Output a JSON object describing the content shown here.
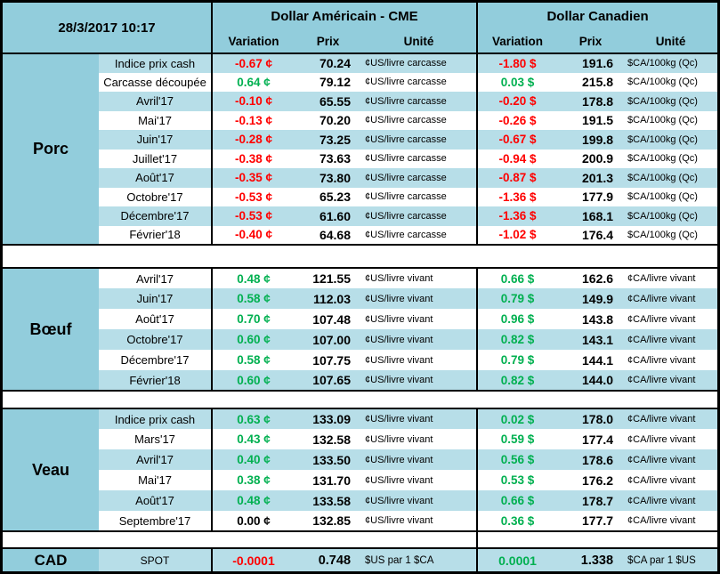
{
  "meta": {
    "timestamp": "28/3/2017 10:17"
  },
  "header": {
    "us_title": "Dollar Américain - CME",
    "ca_title": "Dollar Canadien",
    "col_variation": "Variation",
    "col_price": "Prix",
    "col_unit": "Unité"
  },
  "colors": {
    "negative_red": "#FF0000",
    "positive_green": "#00B050",
    "header_blue": "#92CDDC",
    "stripe_blue": "#B7DEE8",
    "grid_black": "#000000"
  },
  "sections": [
    {
      "id": "porc",
      "name": "Porc",
      "stripe_offset": 1,
      "rows": [
        {
          "label": "Indice prix cash",
          "us": {
            "variation": "-0.67 ¢",
            "price": "70.24",
            "unit": "¢US/livre carcasse"
          },
          "ca": {
            "variation": "-1.80 $",
            "price": "191.6",
            "unit": "$CA/100kg (Qc)"
          }
        },
        {
          "label": "Carcasse découpée",
          "us": {
            "variation": "0.64 ¢",
            "price": "79.12",
            "unit": "¢US/livre carcasse"
          },
          "ca": {
            "variation": "0.03 $",
            "price": "215.8",
            "unit": "$CA/100kg (Qc)"
          }
        },
        {
          "label": "Avril'17",
          "us": {
            "variation": "-0.10 ¢",
            "price": "65.55",
            "unit": "¢US/livre carcasse"
          },
          "ca": {
            "variation": "-0.20 $",
            "price": "178.8",
            "unit": "$CA/100kg (Qc)"
          }
        },
        {
          "label": "Mai'17",
          "us": {
            "variation": "-0.13 ¢",
            "price": "70.20",
            "unit": "¢US/livre carcasse"
          },
          "ca": {
            "variation": "-0.26 $",
            "price": "191.5",
            "unit": "$CA/100kg (Qc)"
          }
        },
        {
          "label": "Juin'17",
          "us": {
            "variation": "-0.28 ¢",
            "price": "73.25",
            "unit": "¢US/livre carcasse"
          },
          "ca": {
            "variation": "-0.67 $",
            "price": "199.8",
            "unit": "$CA/100kg (Qc)"
          }
        },
        {
          "label": "Juillet'17",
          "us": {
            "variation": "-0.38 ¢",
            "price": "73.63",
            "unit": "¢US/livre carcasse"
          },
          "ca": {
            "variation": "-0.94 $",
            "price": "200.9",
            "unit": "$CA/100kg (Qc)"
          }
        },
        {
          "label": "Août'17",
          "us": {
            "variation": "-0.35 ¢",
            "price": "73.80",
            "unit": "¢US/livre carcasse"
          },
          "ca": {
            "variation": "-0.87 $",
            "price": "201.3",
            "unit": "$CA/100kg (Qc)"
          }
        },
        {
          "label": "Octobre'17",
          "us": {
            "variation": "-0.53 ¢",
            "price": "65.23",
            "unit": "¢US/livre carcasse"
          },
          "ca": {
            "variation": "-1.36 $",
            "price": "177.9",
            "unit": "$CA/100kg (Qc)"
          }
        },
        {
          "label": "Décembre'17",
          "us": {
            "variation": "-0.53 ¢",
            "price": "61.60",
            "unit": "¢US/livre carcasse"
          },
          "ca": {
            "variation": "-1.36 $",
            "price": "168.1",
            "unit": "$CA/100kg (Qc)"
          }
        },
        {
          "label": "Février'18",
          "us": {
            "variation": "-0.40 ¢",
            "price": "64.68",
            "unit": "¢US/livre carcasse"
          },
          "ca": {
            "variation": "-1.02 $",
            "price": "176.4",
            "unit": "$CA/100kg (Qc)"
          }
        }
      ]
    },
    {
      "id": "boeuf",
      "name": "Bœuf",
      "stripe_offset": 0,
      "rows": [
        {
          "label": "Avril'17",
          "us": {
            "variation": "0.48 ¢",
            "price": "121.55",
            "unit": "¢US/livre vivant"
          },
          "ca": {
            "variation": "0.66 $",
            "price": "162.6",
            "unit": "¢CA/livre vivant"
          }
        },
        {
          "label": "Juin'17",
          "us": {
            "variation": "0.58 ¢",
            "price": "112.03",
            "unit": "¢US/livre vivant"
          },
          "ca": {
            "variation": "0.79 $",
            "price": "149.9",
            "unit": "¢CA/livre vivant"
          }
        },
        {
          "label": "Août'17",
          "us": {
            "variation": "0.70 ¢",
            "price": "107.48",
            "unit": "¢US/livre vivant"
          },
          "ca": {
            "variation": "0.96 $",
            "price": "143.8",
            "unit": "¢CA/livre vivant"
          }
        },
        {
          "label": "Octobre'17",
          "us": {
            "variation": "0.60 ¢",
            "price": "107.00",
            "unit": "¢US/livre vivant"
          },
          "ca": {
            "variation": "0.82 $",
            "price": "143.1",
            "unit": "¢CA/livre vivant"
          }
        },
        {
          "label": "Décembre'17",
          "us": {
            "variation": "0.58 ¢",
            "price": "107.75",
            "unit": "¢US/livre vivant"
          },
          "ca": {
            "variation": "0.79 $",
            "price": "144.1",
            "unit": "¢CA/livre vivant"
          }
        },
        {
          "label": "Février'18",
          "us": {
            "variation": "0.60 ¢",
            "price": "107.65",
            "unit": "¢US/livre vivant"
          },
          "ca": {
            "variation": "0.82 $",
            "price": "144.0",
            "unit": "¢CA/livre vivant"
          }
        }
      ]
    },
    {
      "id": "veau",
      "name": "Veau",
      "stripe_offset": 1,
      "rows": [
        {
          "label": "Indice prix cash",
          "us": {
            "variation": "0.63 ¢",
            "price": "133.09",
            "unit": "¢US/livre vivant"
          },
          "ca": {
            "variation": "0.02 $",
            "price": "178.0",
            "unit": "¢CA/livre vivant"
          }
        },
        {
          "label": "Mars'17",
          "us": {
            "variation": "0.43 ¢",
            "price": "132.58",
            "unit": "¢US/livre vivant"
          },
          "ca": {
            "variation": "0.59 $",
            "price": "177.4",
            "unit": "¢CA/livre vivant"
          }
        },
        {
          "label": "Avril'17",
          "us": {
            "variation": "0.40 ¢",
            "price": "133.50",
            "unit": "¢US/livre vivant"
          },
          "ca": {
            "variation": "0.56 $",
            "price": "178.6",
            "unit": "¢CA/livre vivant"
          }
        },
        {
          "label": "Mai'17",
          "us": {
            "variation": "0.38 ¢",
            "price": "131.70",
            "unit": "¢US/livre vivant"
          },
          "ca": {
            "variation": "0.53 $",
            "price": "176.2",
            "unit": "¢CA/livre vivant"
          }
        },
        {
          "label": "Août'17",
          "us": {
            "variation": "0.48 ¢",
            "price": "133.58",
            "unit": "¢US/livre vivant"
          },
          "ca": {
            "variation": "0.66 $",
            "price": "178.7",
            "unit": "¢CA/livre vivant"
          }
        },
        {
          "label": "Septembre'17",
          "us": {
            "variation": "0.00 ¢",
            "price": "132.85",
            "unit": "¢US/livre vivant"
          },
          "ca": {
            "variation": "0.36 $",
            "price": "177.7",
            "unit": "¢CA/livre vivant"
          }
        }
      ]
    }
  ],
  "cad": {
    "name": "CAD",
    "label": "SPOT",
    "us": {
      "variation": "-0.0001",
      "price": "0.748",
      "unit": "$US par 1 $CA"
    },
    "ca": {
      "variation": "0.0001",
      "price": "1.338",
      "unit": "$CA par 1 $US"
    }
  }
}
